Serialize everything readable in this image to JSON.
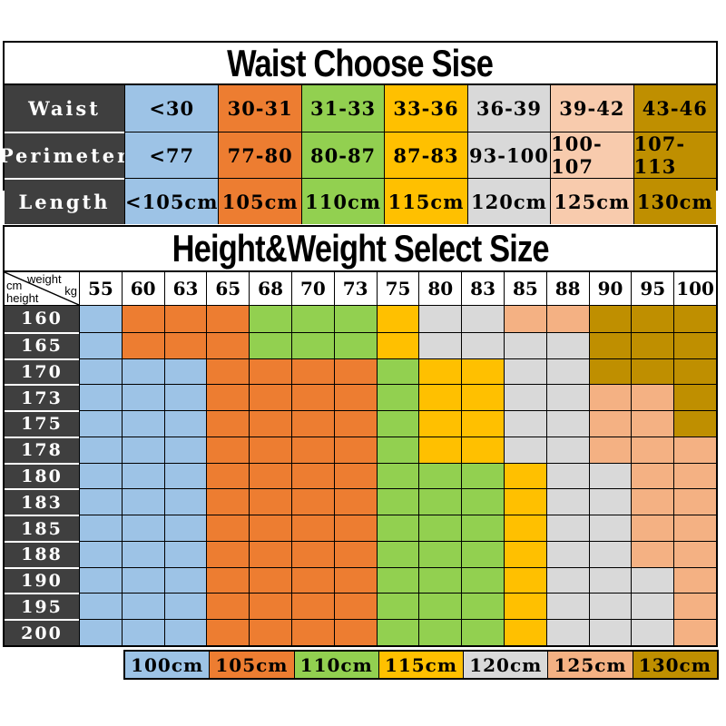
{
  "colors": {
    "dark": "#3f3f3f",
    "blue": "#9dc3e6",
    "orange": "#ed7d31",
    "green": "#92d050",
    "yellow": "#ffc000",
    "gray": "#d9d9d9",
    "peach_light": "#f8cbad",
    "peach": "#f4b183",
    "gold": "#bf8f00",
    "border": "#000000",
    "background": "#ffffff",
    "header_text": "#ffffff",
    "cell_text": "#000000"
  },
  "presentation": {
    "waist_column_colors": [
      "blue",
      "orange",
      "green",
      "yellow",
      "gray",
      "peach_light",
      "gold"
    ],
    "size_colors": {
      "100": "blue",
      "105": "orange",
      "110": "green",
      "115": "yellow",
      "120": "gray",
      "125": "peach",
      "130": "gold"
    },
    "legend_colors": [
      "blue",
      "orange",
      "green",
      "yellow",
      "gray",
      "peach",
      "gold"
    ]
  },
  "corner": {
    "weight": "weight",
    "kg": "kg",
    "cm": "cm",
    "height": "height"
  },
  "chart_data": [
    {
      "type": "table",
      "title": "Waist Choose Sise",
      "rows": [
        {
          "label": "Waist",
          "values": [
            "<30",
            "30-31",
            "31-33",
            "33-36",
            "36-39",
            "39-42",
            "43-46"
          ]
        },
        {
          "label": "Perimeter",
          "values": [
            "<77",
            "77-80",
            "80-87",
            "87-83",
            "93-100",
            "100-107",
            "107-113"
          ]
        },
        {
          "label": "Length",
          "values": [
            "<105cm",
            "105cm",
            "110cm",
            "115cm",
            "120cm",
            "125cm",
            "130cm"
          ]
        }
      ]
    },
    {
      "type": "heatmap",
      "title": "Height&Weight Select Size",
      "x_label": "weight kg",
      "y_label": "cm height",
      "x": [
        55,
        60,
        63,
        65,
        68,
        70,
        73,
        75,
        80,
        83,
        85,
        88,
        90,
        95,
        100
      ],
      "y": [
        160,
        165,
        170,
        173,
        175,
        178,
        180,
        183,
        185,
        188,
        190,
        195,
        200
      ],
      "values": [
        [
          100,
          105,
          105,
          105,
          110,
          110,
          110,
          115,
          120,
          120,
          125,
          125,
          130,
          130,
          130
        ],
        [
          100,
          105,
          105,
          105,
          110,
          110,
          110,
          115,
          120,
          120,
          120,
          120,
          130,
          130,
          130
        ],
        [
          100,
          100,
          100,
          105,
          105,
          105,
          105,
          110,
          115,
          115,
          120,
          120,
          130,
          130,
          130
        ],
        [
          100,
          100,
          100,
          105,
          105,
          105,
          105,
          110,
          115,
          115,
          120,
          120,
          125,
          125,
          130
        ],
        [
          100,
          100,
          100,
          105,
          105,
          105,
          105,
          110,
          115,
          115,
          120,
          120,
          125,
          125,
          130
        ],
        [
          100,
          100,
          100,
          105,
          105,
          105,
          105,
          110,
          115,
          115,
          120,
          120,
          125,
          125,
          125
        ],
        [
          100,
          100,
          100,
          105,
          105,
          105,
          105,
          110,
          110,
          110,
          115,
          120,
          120,
          125,
          125
        ],
        [
          100,
          100,
          100,
          105,
          105,
          105,
          105,
          110,
          110,
          110,
          115,
          120,
          120,
          125,
          125
        ],
        [
          100,
          100,
          100,
          105,
          105,
          105,
          105,
          110,
          110,
          110,
          115,
          120,
          120,
          125,
          125
        ],
        [
          100,
          100,
          100,
          105,
          105,
          105,
          105,
          110,
          110,
          110,
          115,
          120,
          120,
          125,
          125
        ],
        [
          100,
          100,
          100,
          105,
          105,
          105,
          105,
          110,
          110,
          110,
          115,
          120,
          120,
          120,
          125
        ],
        [
          100,
          100,
          100,
          105,
          105,
          105,
          105,
          110,
          110,
          110,
          115,
          120,
          120,
          120,
          125
        ],
        [
          100,
          100,
          100,
          105,
          105,
          105,
          105,
          110,
          110,
          110,
          115,
          120,
          120,
          120,
          125
        ]
      ],
      "legend": [
        "100cm",
        "105cm",
        "110cm",
        "115cm",
        "120cm",
        "125cm",
        "130cm"
      ]
    }
  ]
}
